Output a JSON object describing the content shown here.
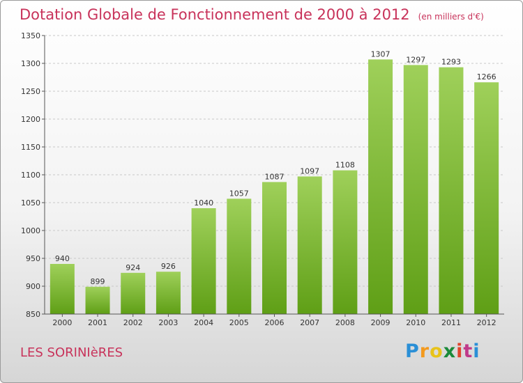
{
  "title": "Dotation Globale de Fonctionnement de 2000 à 2012",
  "subtitle": "(en milliers d'€)",
  "commune": "LES SORINIèRES",
  "logo": {
    "letters": [
      "P",
      "r",
      "o",
      "x",
      "i",
      "t",
      "i"
    ],
    "colors": [
      "#2a8fd6",
      "#f39a1e",
      "#e8c31a",
      "#1a8a3a",
      "#e0452c",
      "#c03a8a",
      "#2a8fd6"
    ]
  },
  "colors": {
    "bar_top": "#9fd05a",
    "bar_bottom": "#5f9f16",
    "title": "#c8325a",
    "grid": "#c8c8c8"
  },
  "chart_data": {
    "type": "bar",
    "categories": [
      "2000",
      "2001",
      "2002",
      "2003",
      "2004",
      "2005",
      "2006",
      "2007",
      "2008",
      "2009",
      "2010",
      "2011",
      "2012"
    ],
    "values": [
      940,
      899,
      924,
      926,
      1040,
      1057,
      1087,
      1097,
      1108,
      1307,
      1297,
      1293,
      1266
    ],
    "ylim": [
      850,
      1350
    ],
    "yticks": [
      850,
      900,
      950,
      1000,
      1050,
      1100,
      1150,
      1200,
      1250,
      1300,
      1350
    ],
    "grid": true,
    "legend": "none"
  }
}
